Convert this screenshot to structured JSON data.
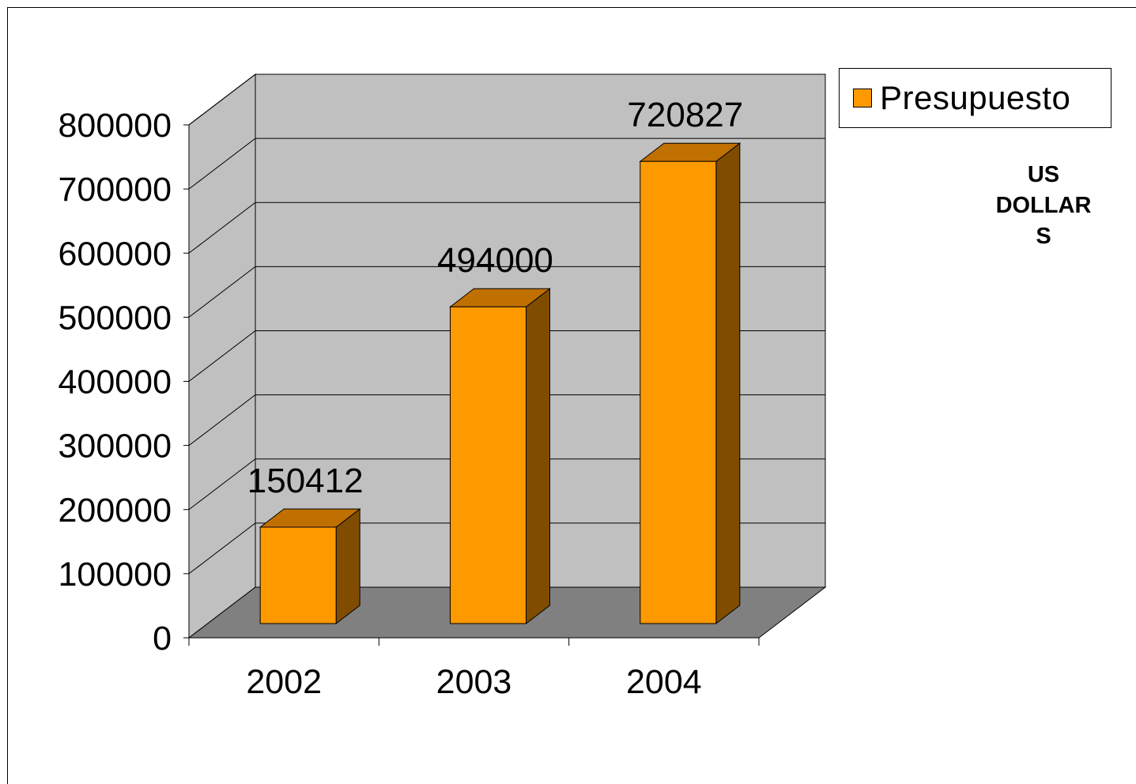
{
  "chart_data": {
    "type": "bar",
    "style": "3d-column",
    "categories": [
      "2002",
      "2003",
      "2004"
    ],
    "series": [
      {
        "name": "Presupuesto",
        "values": [
          150412,
          494000,
          720827
        ]
      }
    ],
    "data_labels": [
      "150412",
      "494000",
      "720827"
    ],
    "y_ticks": [
      "0",
      "100000",
      "200000",
      "300000",
      "400000",
      "500000",
      "600000",
      "700000",
      "800000"
    ],
    "ylim": [
      0,
      800000
    ],
    "grid": true,
    "legend_position": "top-right",
    "unit_note": "US DOLLAR S",
    "colors": {
      "bar_front": "#FF9900",
      "bar_top": "#C07000",
      "bar_side": "#7F4C00",
      "back_wall": "#C0C0C0",
      "floor": "#808080",
      "gridline": "#000000"
    }
  },
  "legend": {
    "label": "Presupuesto"
  },
  "unit_note_lines": [
    "US",
    "DOLLAR",
    "S"
  ]
}
